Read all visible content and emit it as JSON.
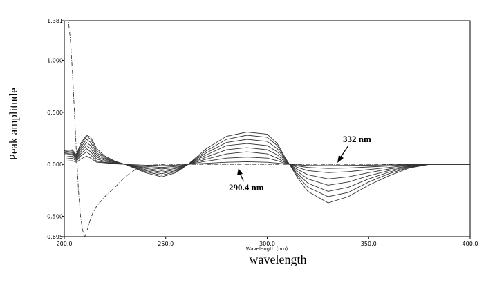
{
  "chart_data": {
    "type": "line",
    "ylabel": "Peak amplitude",
    "xlabel": "wavelength",
    "axis_title": "Wavelength (nm)",
    "xlim": [
      200.0,
      400.0
    ],
    "ylim": [
      -0.695,
      1.381
    ],
    "xticks": [
      "200.0",
      "250.0",
      "300.0",
      "350.0",
      "400.0"
    ],
    "xtick_values": [
      200,
      250,
      300,
      350,
      400
    ],
    "yticks": [
      "1.381",
      "1.000",
      "0.500",
      "0.000",
      "-0.500",
      "-0.695"
    ],
    "ytick_values": [
      1.381,
      1.0,
      0.5,
      0.0,
      -0.5,
      -0.695
    ],
    "grid": false,
    "annotations": [
      {
        "text": "332 nm",
        "x": 332,
        "y": 0.0
      },
      {
        "text": "290.4 nm",
        "x": 290.4,
        "y": 0.0
      }
    ],
    "series": [
      {
        "style": "dash-dot",
        "x": [
          200,
          202,
          203,
          204,
          205,
          206,
          207,
          208,
          209,
          210,
          211,
          212,
          214,
          216,
          220,
          225,
          230,
          235,
          240,
          250,
          400
        ],
        "y": [
          1.381,
          1.381,
          1.2,
          0.9,
          0.5,
          0.1,
          -0.25,
          -0.5,
          -0.63,
          -0.695,
          -0.66,
          -0.58,
          -0.47,
          -0.4,
          -0.31,
          -0.22,
          -0.12,
          -0.05,
          -0.01,
          0.0,
          0.0
        ]
      },
      {
        "style": "solid",
        "x": [
          200,
          204,
          206,
          208,
          211,
          213,
          216,
          220,
          225,
          230,
          240,
          248,
          255,
          261,
          270,
          280,
          290,
          300,
          305,
          309,
          311,
          315,
          320,
          330,
          340,
          350,
          360,
          370,
          380,
          400
        ],
        "y": [
          0.03,
          0.035,
          0.02,
          0.05,
          0.08,
          0.06,
          0.02,
          0.015,
          0.005,
          0.0,
          -0.008,
          -0.012,
          -0.008,
          0.0,
          0.01,
          0.02,
          0.025,
          0.02,
          0.012,
          0.003,
          0.0,
          -0.005,
          -0.01,
          -0.012,
          -0.01,
          -0.008,
          -0.005,
          -0.002,
          0.0,
          0.0
        ]
      },
      {
        "style": "solid",
        "x": [
          200,
          204,
          206,
          208,
          211,
          213,
          216,
          220,
          225,
          230,
          240,
          248,
          255,
          261,
          270,
          280,
          290,
          300,
          305,
          309,
          311,
          315,
          320,
          330,
          340,
          350,
          360,
          370,
          380,
          400
        ],
        "y": [
          0.05,
          0.06,
          0.03,
          0.08,
          0.12,
          0.09,
          0.03,
          0.02,
          0.008,
          0.0,
          -0.02,
          -0.03,
          -0.02,
          0.0,
          0.03,
          0.06,
          0.07,
          0.06,
          0.035,
          0.008,
          0.0,
          -0.015,
          -0.03,
          -0.04,
          -0.035,
          -0.025,
          -0.015,
          -0.005,
          0.0,
          0.0
        ]
      },
      {
        "style": "solid",
        "x": [
          200,
          204,
          206,
          208,
          211,
          213,
          216,
          220,
          225,
          230,
          240,
          248,
          255,
          261,
          270,
          280,
          290,
          300,
          305,
          309,
          311,
          315,
          320,
          330,
          340,
          350,
          360,
          370,
          380,
          400
        ],
        "y": [
          0.07,
          0.08,
          0.04,
          0.1,
          0.15,
          0.12,
          0.05,
          0.03,
          0.01,
          0.0,
          -0.03,
          -0.045,
          -0.03,
          0.0,
          0.05,
          0.1,
          0.12,
          0.1,
          0.06,
          0.015,
          0.0,
          -0.03,
          -0.06,
          -0.08,
          -0.07,
          -0.05,
          -0.03,
          -0.01,
          0.0,
          0.0
        ]
      },
      {
        "style": "solid",
        "x": [
          200,
          204,
          206,
          208,
          211,
          213,
          216,
          220,
          225,
          230,
          240,
          248,
          255,
          261,
          270,
          280,
          290,
          300,
          305,
          309,
          311,
          315,
          320,
          330,
          340,
          350,
          360,
          370,
          380,
          400
        ],
        "y": [
          0.09,
          0.1,
          0.05,
          0.12,
          0.18,
          0.15,
          0.07,
          0.04,
          0.015,
          0.0,
          -0.04,
          -0.06,
          -0.04,
          0.0,
          0.07,
          0.14,
          0.16,
          0.14,
          0.09,
          0.02,
          0.0,
          -0.05,
          -0.1,
          -0.14,
          -0.12,
          -0.08,
          -0.045,
          -0.015,
          0.0,
          0.0
        ]
      },
      {
        "style": "solid",
        "x": [
          200,
          204,
          206,
          208,
          211,
          213,
          216,
          220,
          225,
          230,
          240,
          248,
          255,
          261,
          270,
          280,
          290,
          300,
          305,
          309,
          311,
          315,
          320,
          330,
          340,
          350,
          360,
          370,
          380,
          400
        ],
        "y": [
          0.1,
          0.11,
          0.06,
          0.14,
          0.21,
          0.18,
          0.09,
          0.05,
          0.02,
          0.0,
          -0.05,
          -0.075,
          -0.05,
          0.0,
          0.09,
          0.18,
          0.2,
          0.18,
          0.12,
          0.03,
          0.0,
          -0.07,
          -0.14,
          -0.2,
          -0.17,
          -0.11,
          -0.06,
          -0.02,
          0.0,
          0.0
        ]
      },
      {
        "style": "solid",
        "x": [
          200,
          204,
          206,
          208,
          211,
          213,
          216,
          220,
          225,
          230,
          240,
          248,
          255,
          261,
          270,
          280,
          290,
          300,
          305,
          309,
          311,
          315,
          320,
          330,
          340,
          350,
          360,
          370,
          380,
          400
        ],
        "y": [
          0.11,
          0.12,
          0.07,
          0.16,
          0.24,
          0.21,
          0.11,
          0.06,
          0.02,
          0.0,
          -0.06,
          -0.09,
          -0.06,
          0.0,
          0.11,
          0.21,
          0.24,
          0.22,
          0.15,
          0.04,
          0.0,
          -0.09,
          -0.18,
          -0.26,
          -0.22,
          -0.14,
          -0.075,
          -0.025,
          0.0,
          0.0
        ]
      },
      {
        "style": "solid",
        "x": [
          200,
          204,
          206,
          208,
          211,
          213,
          216,
          220,
          225,
          230,
          240,
          248,
          255,
          261,
          270,
          280,
          290,
          300,
          305,
          309,
          311,
          315,
          320,
          330,
          340,
          350,
          360,
          370,
          380,
          400
        ],
        "y": [
          0.12,
          0.13,
          0.08,
          0.18,
          0.27,
          0.24,
          0.13,
          0.07,
          0.025,
          0.0,
          -0.07,
          -0.105,
          -0.07,
          0.0,
          0.13,
          0.24,
          0.28,
          0.26,
          0.18,
          0.05,
          0.0,
          -0.11,
          -0.22,
          -0.31,
          -0.27,
          -0.17,
          -0.09,
          -0.03,
          0.0,
          0.0
        ]
      },
      {
        "style": "solid",
        "x": [
          200,
          204,
          206,
          208,
          211,
          213,
          216,
          220,
          225,
          230,
          240,
          248,
          255,
          261,
          270,
          280,
          290,
          300,
          305,
          309,
          311,
          315,
          320,
          330,
          340,
          350,
          360,
          370,
          380,
          400
        ],
        "y": [
          0.13,
          0.14,
          0.09,
          0.2,
          0.28,
          0.26,
          0.15,
          0.08,
          0.03,
          0.0,
          -0.08,
          -0.12,
          -0.08,
          0.0,
          0.15,
          0.27,
          0.31,
          0.29,
          0.2,
          0.06,
          0.0,
          -0.13,
          -0.26,
          -0.37,
          -0.31,
          -0.2,
          -0.11,
          -0.035,
          0.0,
          0.0
        ]
      }
    ]
  }
}
